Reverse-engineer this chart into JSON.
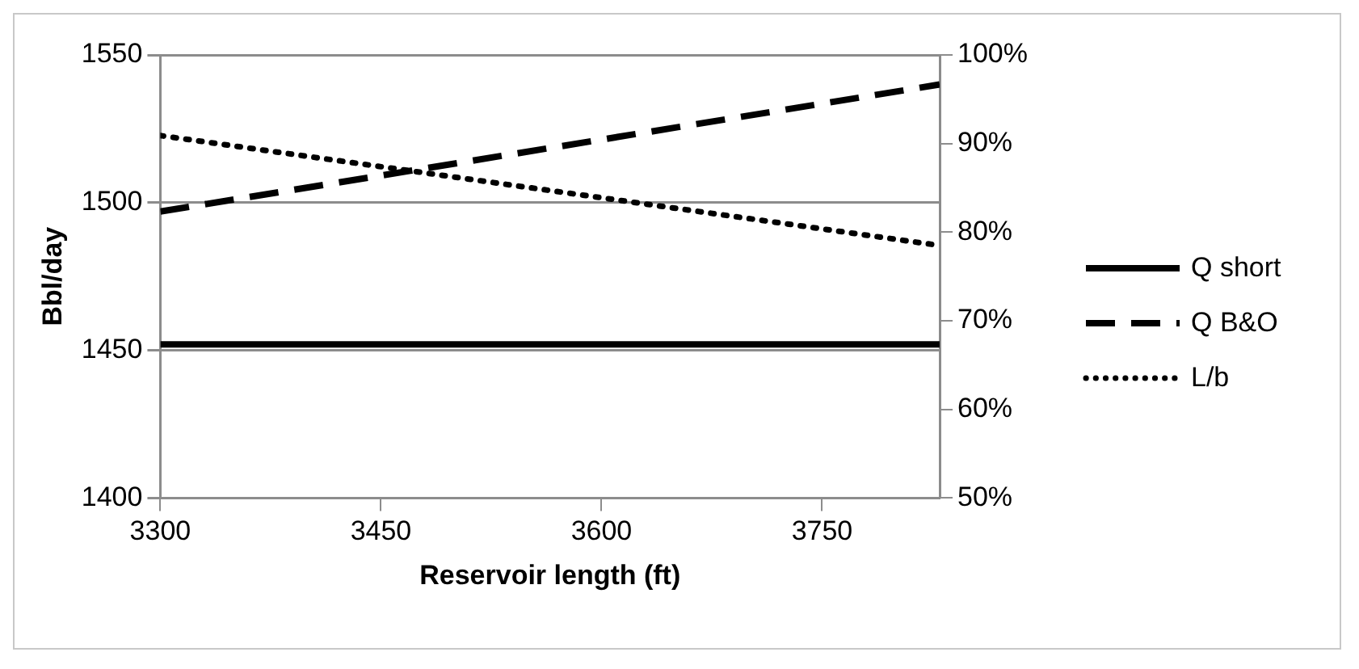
{
  "chart_data": {
    "type": "line",
    "xlabel": "Reservoir length (ft)",
    "ylabel": "Bbl/day",
    "x": [
      3300,
      3830
    ],
    "xlim": [
      3300,
      3830
    ],
    "xticks": [
      3300,
      3450,
      3600,
      3750
    ],
    "ylim": [
      1400,
      1550
    ],
    "yticks": [
      1400,
      1450,
      1500,
      1550
    ],
    "y2lim": [
      50,
      100
    ],
    "y2ticks": [
      {
        "value": 50,
        "label": "50%"
      },
      {
        "value": 60,
        "label": "60%"
      },
      {
        "value": 70,
        "label": "70%"
      },
      {
        "value": 80,
        "label": "80%"
      },
      {
        "value": 90,
        "label": "90%"
      },
      {
        "value": 100,
        "label": "100%"
      }
    ],
    "series": [
      {
        "name": "Q short",
        "color": "#000000",
        "values": [
          1452,
          1452
        ],
        "line_style": "solid"
      },
      {
        "name": "Q B&O",
        "color": "#000000",
        "values": [
          1497,
          1540
        ],
        "line_style": "dashed"
      },
      {
        "name": "L/b",
        "color": "#000000",
        "values": [
          90.9,
          78.5
        ],
        "line_style": "dotted",
        "axis": "y2"
      }
    ],
    "grid": "y",
    "legend": "right",
    "marker": "none"
  }
}
